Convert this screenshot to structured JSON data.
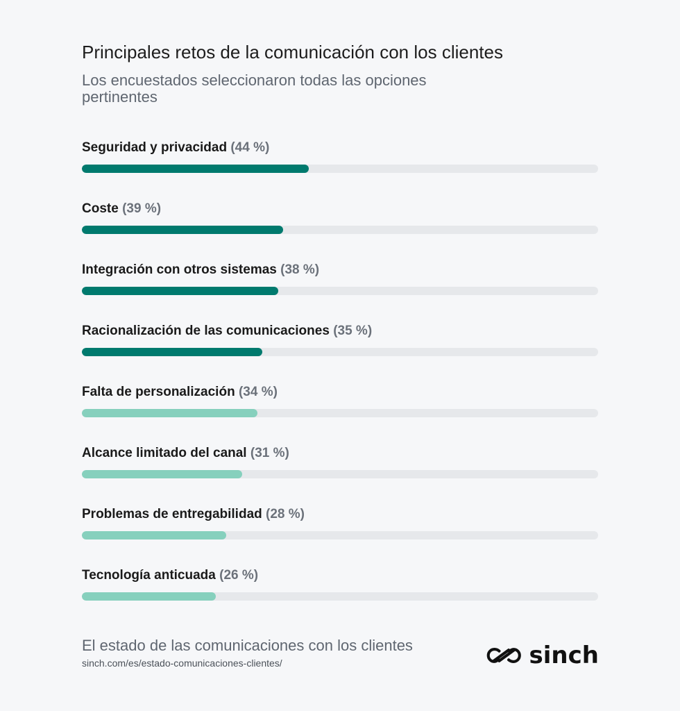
{
  "title": "Principales retos de la comunicación con los clientes",
  "subtitle": "Los encuestados seleccionaron todas las opciones pertinentes",
  "footer": {
    "source_title": "El estado de las comunicaciones con los clientes",
    "source_url": "sinch.com/es/estado-comunicaciones-clientes/",
    "brand": "sinch"
  },
  "colors": {
    "dark_teal": "#007a6e",
    "light_teal": "#86d0bd",
    "track": "#e6e8eb"
  },
  "chart_data": {
    "type": "bar",
    "orientation": "horizontal",
    "xlim": [
      0,
      100
    ],
    "categories": [
      "Seguridad y privacidad",
      "Coste",
      "Integración con otros sistemas",
      "Racionalización de las comunicaciones",
      "Falta de personalización",
      "Alcance limitado del canal",
      "Problemas de entregabilidad",
      "Tecnología anticuada"
    ],
    "values": [
      44,
      39,
      38,
      35,
      34,
      31,
      28,
      26
    ],
    "value_labels": [
      "(44 %)",
      "(39 %)",
      "(38 %)",
      "(35 %)",
      "(34 %)",
      "(31 %)",
      "(28 %)",
      "(26 %)"
    ],
    "bar_colors": [
      "#007a6e",
      "#007a6e",
      "#007a6e",
      "#007a6e",
      "#86d0bd",
      "#86d0bd",
      "#86d0bd",
      "#86d0bd"
    ]
  }
}
